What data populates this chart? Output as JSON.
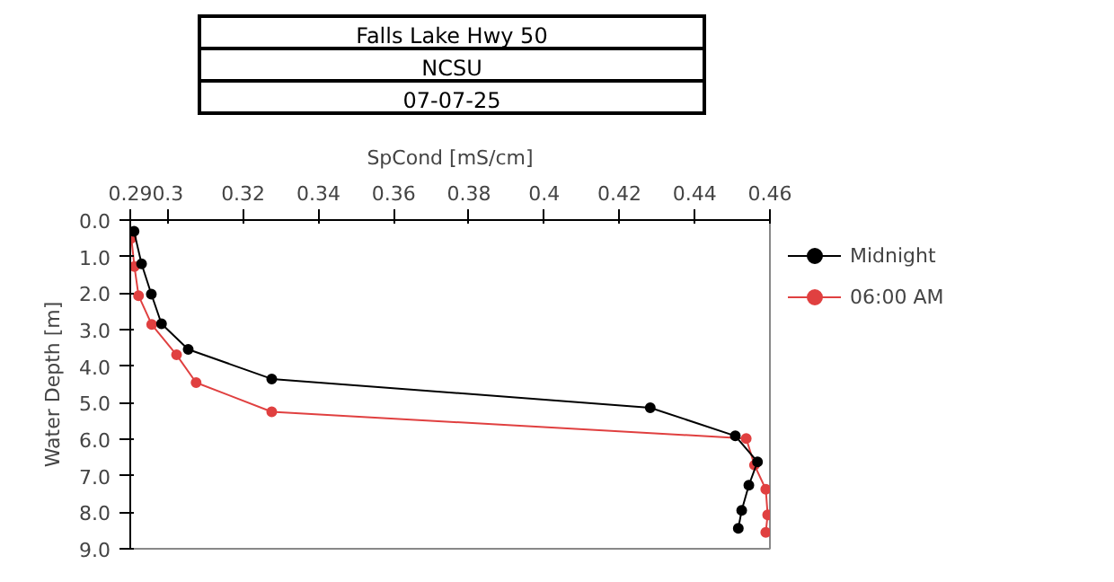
{
  "chart_data": {
    "type": "line",
    "title": "Falls Lake Hwy 50",
    "subtitle": "NCSU",
    "annotations": [
      "07-07-25"
    ],
    "xlabel": "SpCond [mS/cm]",
    "ylabel": "Water Depth [m]",
    "xlim": [
      0.29,
      0.46
    ],
    "xticks": [
      0.29,
      0.3,
      0.32,
      0.34,
      0.36,
      0.38,
      0.4,
      0.42,
      0.44,
      0.46
    ],
    "ylim": [
      9,
      0
    ],
    "yticks": [
      {
        "value": 0,
        "label": "0.0"
      },
      {
        "value": 1,
        "label": "1.0"
      },
      {
        "value": 2,
        "label": "2.0"
      },
      {
        "value": 3,
        "label": "3.0"
      },
      {
        "value": 4,
        "label": "4.0"
      },
      {
        "value": 5,
        "label": "5.0"
      },
      {
        "value": 6,
        "label": "6.0"
      },
      {
        "value": 7,
        "label": "7.0"
      },
      {
        "value": 8,
        "label": "8.0"
      },
      {
        "value": 9,
        "label": "9.0"
      }
    ],
    "grid": false,
    "legend": "top right",
    "marker": "circle",
    "line_style": "solid",
    "series": [
      {
        "name": "Midnight",
        "color": "#000000",
        "x": [
          0.291,
          0.293,
          0.2956,
          0.2983,
          0.3054,
          0.3276,
          0.4282,
          0.4508,
          0.4567,
          0.4544,
          0.4525,
          0.4516
        ],
        "values": [
          0.31,
          1.2,
          2.03,
          2.84,
          3.54,
          4.35,
          5.14,
          5.91,
          6.62,
          7.26,
          7.95,
          8.44
        ]
      },
      {
        "name": "06:00 AM",
        "color": "#e04040",
        "x": [
          0.2903,
          0.2911,
          0.2922,
          0.2957,
          0.3023,
          0.3075,
          0.3276,
          0.4537,
          0.4559,
          0.4589,
          0.4594,
          0.4589
        ],
        "values": [
          0.5,
          1.27,
          2.07,
          2.86,
          3.69,
          4.45,
          5.25,
          5.98,
          6.71,
          7.37,
          8.07,
          8.55
        ]
      }
    ]
  }
}
